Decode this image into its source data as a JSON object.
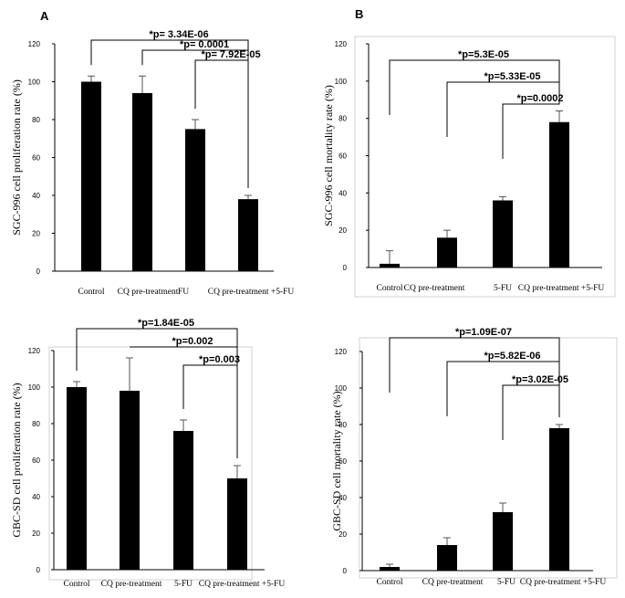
{
  "chart_data": [
    {
      "type": "bar",
      "panel": "A",
      "ylabel": "SGC-996 cell proliferation rate (%)",
      "ylim": [
        0,
        120
      ],
      "yticks": [
        0,
        20,
        40,
        60,
        80,
        100,
        120
      ],
      "categories": [
        "Control",
        "CQ pre-treatment",
        "FU",
        "CQ pre-treatment +5-FU"
      ],
      "values": [
        100,
        94,
        75,
        38
      ],
      "errors": [
        3,
        9,
        5,
        2
      ],
      "comparisons": [
        {
          "from": 0,
          "to": 3,
          "label": "*p= 3.34E-06"
        },
        {
          "from": 1,
          "to": 3,
          "label": "*p= 0.0001"
        },
        {
          "from": 2,
          "to": 3,
          "label": "*p= 7.92E-05"
        }
      ]
    },
    {
      "type": "bar",
      "panel": "B",
      "ylabel": "SGC-996 cell mortality rate (%)",
      "ylim": [
        0,
        120
      ],
      "yticks": [
        0,
        20,
        40,
        60,
        80,
        100,
        120
      ],
      "categories": [
        "Control",
        "CQ pre-treatment",
        "5-FU",
        "CQ pre-treatment +5-FU"
      ],
      "values": [
        2,
        16,
        36,
        78
      ],
      "errors": [
        7,
        4,
        2,
        6
      ],
      "comparisons": [
        {
          "from": 0,
          "to": 3,
          "label": "*p=5.3E-05"
        },
        {
          "from": 1,
          "to": 3,
          "label": "*p=5.33E-05"
        },
        {
          "from": 2,
          "to": 3,
          "label": "*p=0.0002"
        }
      ]
    },
    {
      "type": "bar",
      "panel": "",
      "ylabel": "GBC-SD cell proliferation rate (%)",
      "ylim": [
        0,
        120
      ],
      "yticks": [
        0,
        20,
        40,
        60,
        80,
        100,
        120
      ],
      "categories": [
        "Control",
        "CQ pre-treatment",
        "5-FU",
        "CQ pre-treatment +5-FU"
      ],
      "values": [
        100,
        98,
        76,
        50
      ],
      "errors": [
        3,
        18,
        6,
        7
      ],
      "comparisons": [
        {
          "from": 0,
          "to": 3,
          "label": "*p=1.84E-05"
        },
        {
          "from": 1,
          "to": 3,
          "label": "*p=0.002"
        },
        {
          "from": 2,
          "to": 3,
          "label": "*p=0.003"
        }
      ]
    },
    {
      "type": "bar",
      "panel": "",
      "ylabel": "GBC-SD cell mortality rate (%)",
      "ylim": [
        0,
        120
      ],
      "yticks": [
        0,
        20,
        40,
        60,
        80,
        100,
        120
      ],
      "categories": [
        "Control",
        "CQ pre-treatment",
        "5-FU",
        "CQ pre-treatment +5-FU"
      ],
      "values": [
        2,
        14,
        32,
        78
      ],
      "errors": [
        1.5,
        4,
        5,
        2
      ],
      "comparisons": [
        {
          "from": 0,
          "to": 3,
          "label": "*p=1.09E-07"
        },
        {
          "from": 1,
          "to": 3,
          "label": "*p=5.82E-06"
        },
        {
          "from": 2,
          "to": 3,
          "label": "*p=3.02E-05"
        }
      ]
    }
  ]
}
